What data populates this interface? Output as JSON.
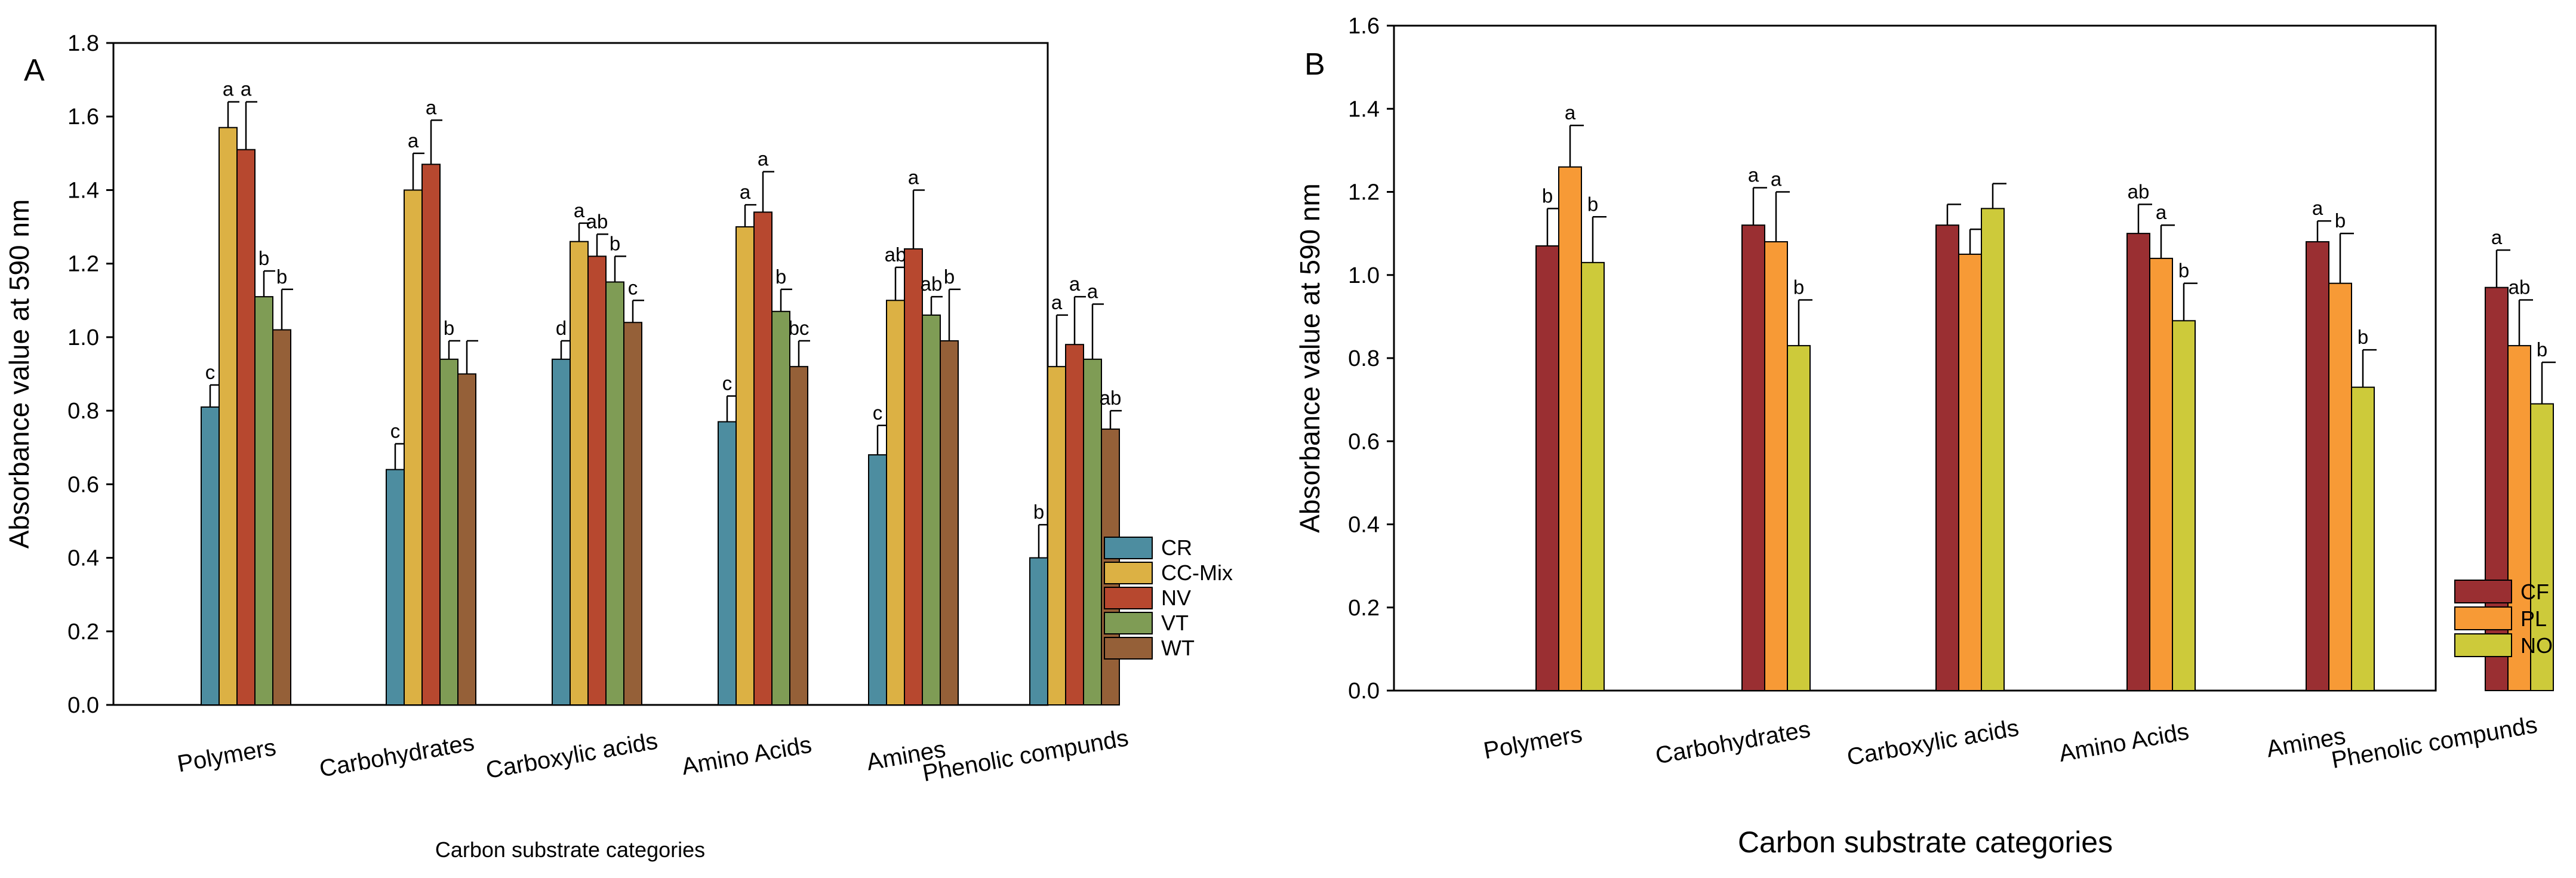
{
  "chart_data": [
    {
      "panel_label": "A",
      "type": "bar",
      "title": "",
      "xlabel": "Carbon substrate categories",
      "ylabel": "Absorbance value at 590 nm",
      "ylim": [
        0,
        1.8
      ],
      "yticks": [
        "0.0",
        "0.2",
        "0.4",
        "0.6",
        "0.8",
        "1.0",
        "1.2",
        "1.4",
        "1.6",
        "1.8"
      ],
      "legend_position": "right",
      "categories": [
        "Polymers",
        "Carbohydrates",
        "Carboxylic acids",
        "Amino Acids",
        "Amines",
        "Phenolic compunds"
      ],
      "series": [
        {
          "name": "CR",
          "color": "#4d8da0",
          "values": [
            0.81,
            0.64,
            0.94,
            0.77,
            0.68,
            0.4
          ],
          "errors": [
            0.06,
            0.07,
            0.05,
            0.07,
            0.08,
            0.09
          ],
          "labels": [
            "c",
            "c",
            "d",
            "c",
            "c",
            "b"
          ]
        },
        {
          "name": "CC-Mix",
          "color": "#dcb144",
          "values": [
            1.57,
            1.4,
            1.26,
            1.3,
            1.1,
            0.92
          ],
          "errors": [
            0.07,
            0.1,
            0.05,
            0.06,
            0.09,
            0.14
          ],
          "labels": [
            "a",
            "a",
            "a",
            "a",
            "ab",
            "a"
          ]
        },
        {
          "name": "NV",
          "color": "#b7482f",
          "values": [
            1.51,
            1.47,
            1.22,
            1.34,
            1.24,
            0.98
          ],
          "errors": [
            0.13,
            0.12,
            0.06,
            0.11,
            0.16,
            0.13
          ],
          "labels": [
            "a",
            "a",
            "ab",
            "a",
            "a",
            "a"
          ]
        },
        {
          "name": "VT",
          "color": "#7f9c55",
          "values": [
            1.11,
            0.94,
            1.15,
            1.07,
            1.06,
            0.94
          ],
          "errors": [
            0.07,
            0.05,
            0.07,
            0.06,
            0.05,
            0.15
          ],
          "labels": [
            "b",
            "b",
            "b",
            "b",
            "ab",
            "a"
          ]
        },
        {
          "name": "WT",
          "color": "#956038",
          "values": [
            1.02,
            0.9,
            1.04,
            0.92,
            0.99,
            0.75
          ],
          "errors": [
            0.11,
            0.09,
            0.06,
            0.07,
            0.14,
            0.05
          ],
          "labels": [
            "b",
            "",
            "c",
            "bc",
            "b",
            "ab"
          ]
        }
      ]
    },
    {
      "panel_label": "B",
      "type": "bar",
      "title": "",
      "xlabel": "Carbon substrate categories",
      "ylabel": "Absorbance value at 590 nm",
      "ylim": [
        0,
        1.6
      ],
      "yticks": [
        "0.0",
        "0.2",
        "0.4",
        "0.6",
        "0.8",
        "1.0",
        "1.2",
        "1.4",
        "1.6"
      ],
      "legend_position": "right",
      "categories": [
        "Polymers",
        "Carbohydrates",
        "Carboxylic acids",
        "Amino Acids",
        "Amines",
        "Phenolic compunds"
      ],
      "series": [
        {
          "name": "CF",
          "color": "#9a2f32",
          "values": [
            1.07,
            1.12,
            1.12,
            1.1,
            1.08,
            0.97
          ],
          "errors": [
            0.09,
            0.09,
            0.05,
            0.07,
            0.05,
            0.09
          ],
          "labels": [
            "b",
            "a",
            "",
            "ab",
            "a",
            "a"
          ]
        },
        {
          "name": "PL",
          "color": "#f79a36",
          "values": [
            1.26,
            1.08,
            1.05,
            1.04,
            0.98,
            0.83
          ],
          "errors": [
            0.1,
            0.12,
            0.06,
            0.08,
            0.12,
            0.11
          ],
          "labels": [
            "a",
            "a",
            "",
            "a",
            "b",
            "ab"
          ]
        },
        {
          "name": "NO",
          "color": "#cdca3a",
          "values": [
            1.03,
            0.83,
            1.16,
            0.89,
            0.73,
            0.69
          ],
          "errors": [
            0.11,
            0.11,
            0.06,
            0.09,
            0.09,
            0.1
          ],
          "labels": [
            "b",
            "b",
            "",
            "b",
            "b",
            "b"
          ]
        }
      ]
    }
  ]
}
